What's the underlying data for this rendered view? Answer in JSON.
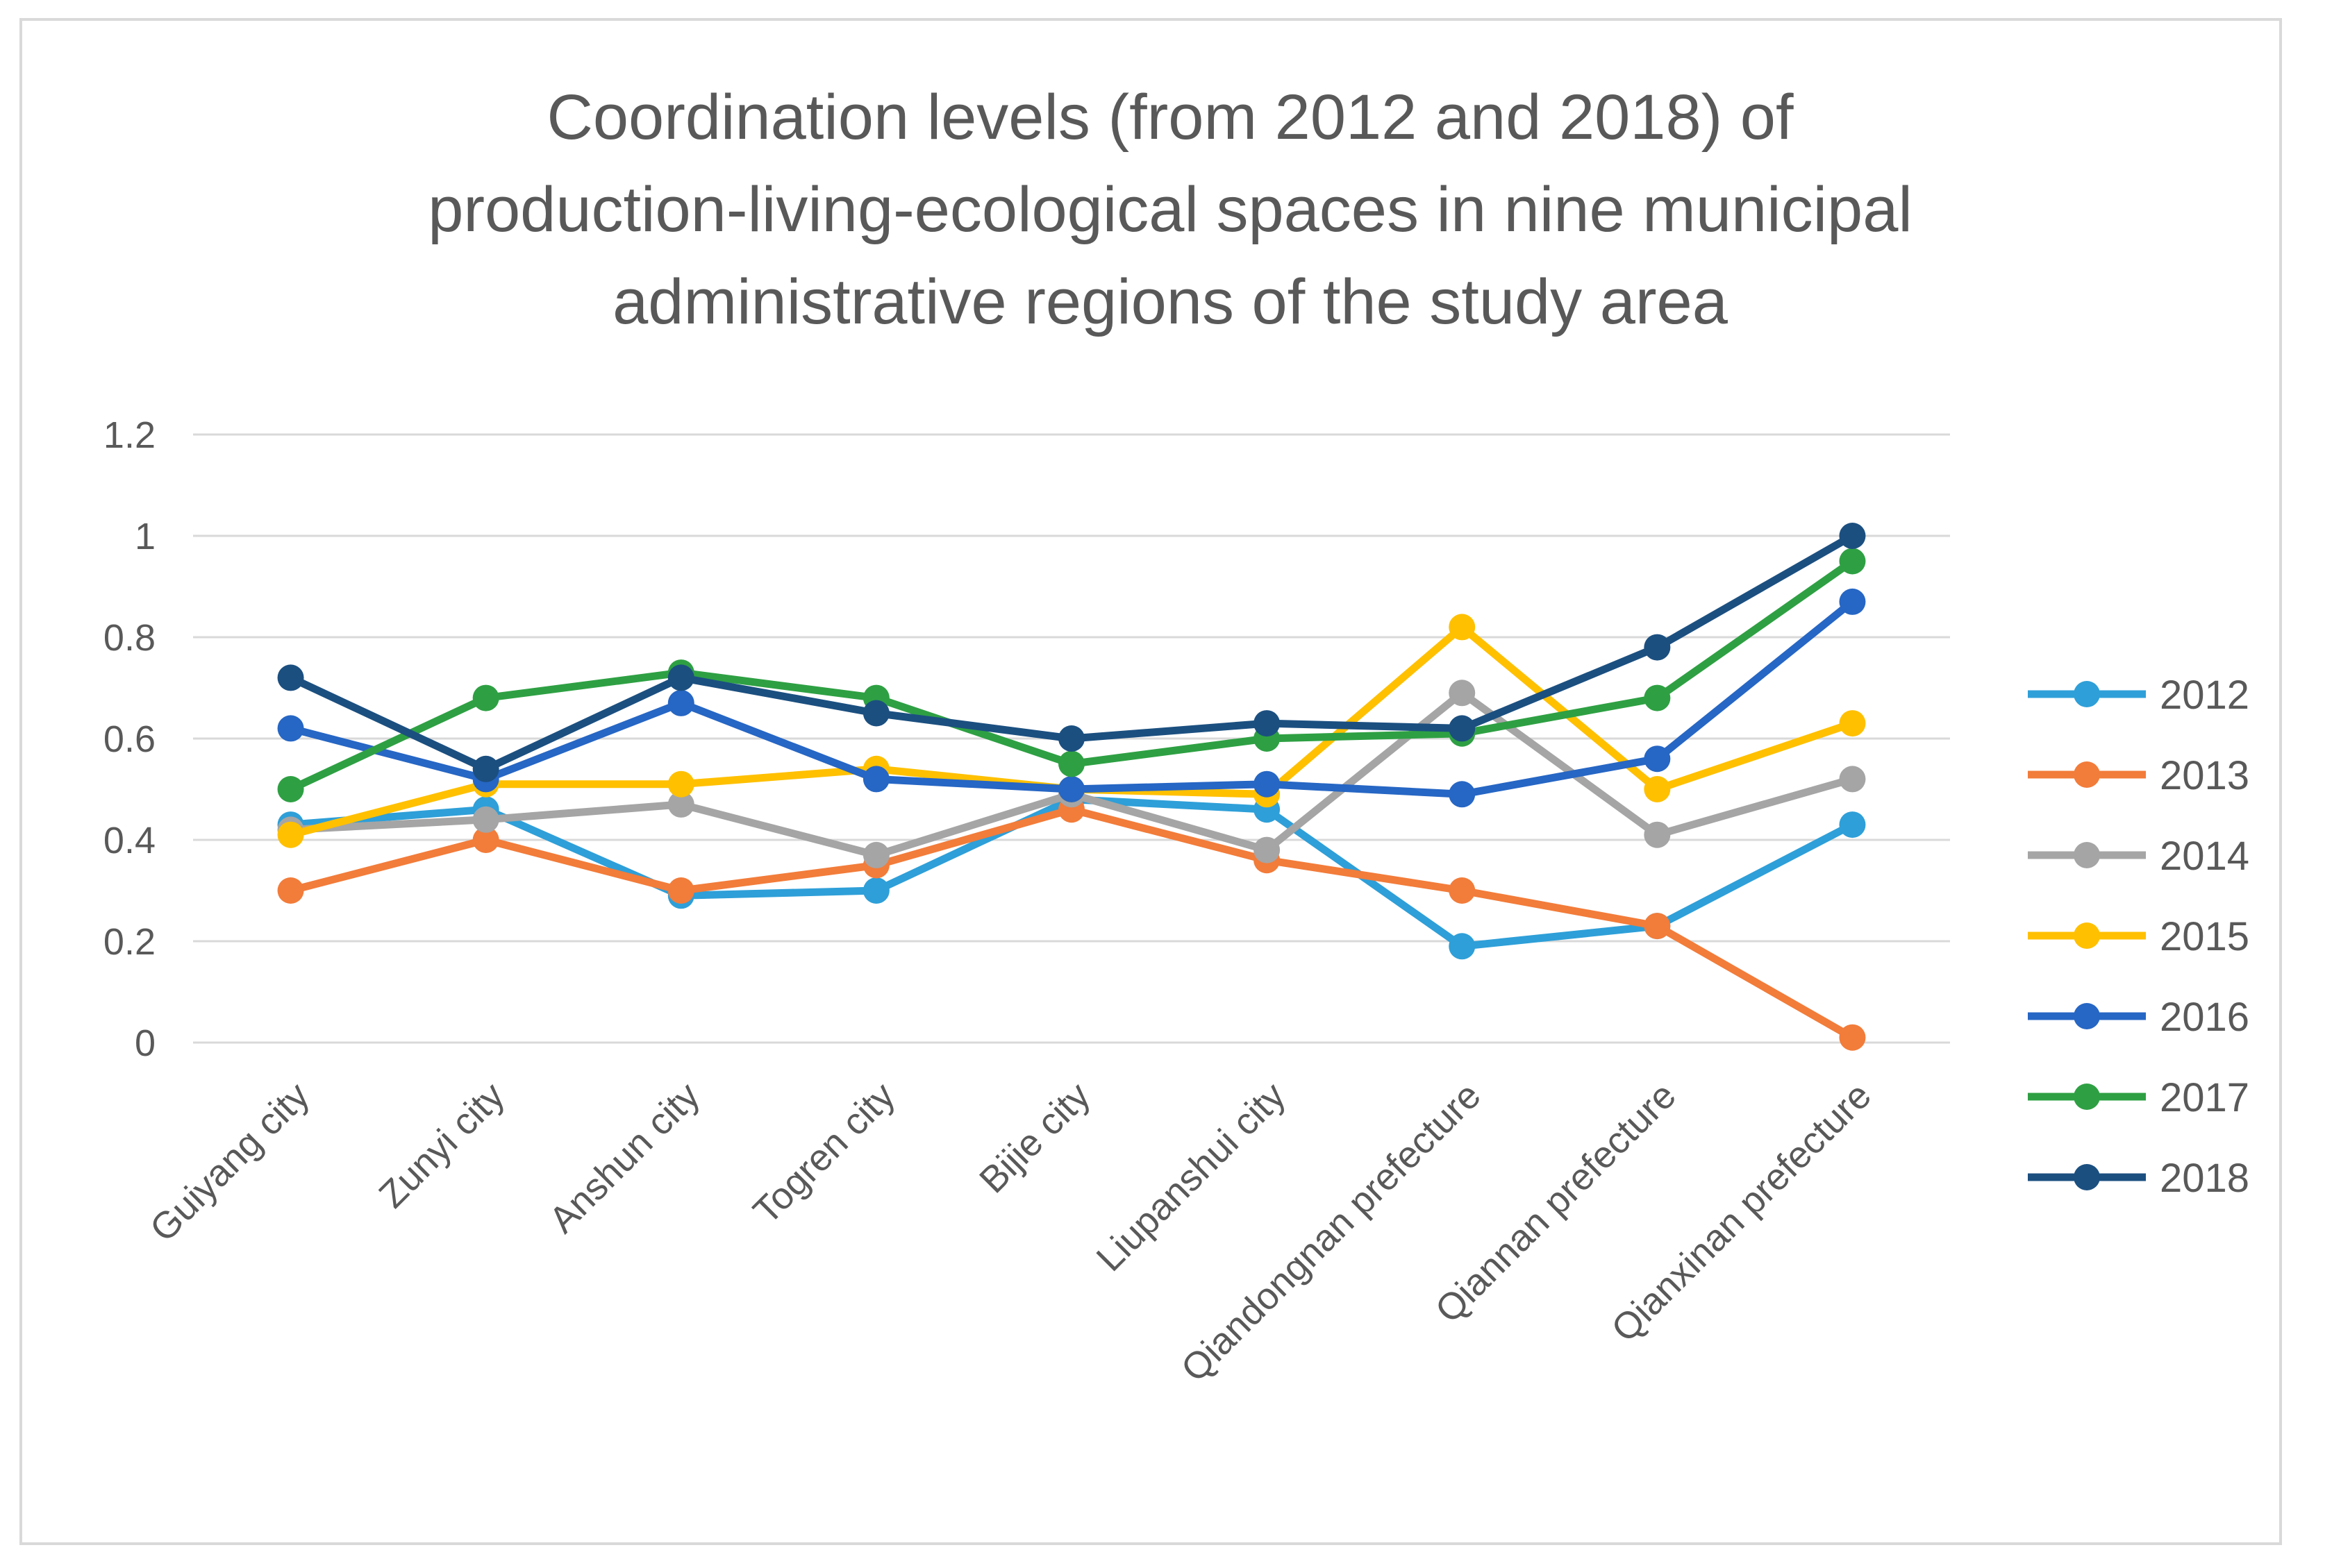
{
  "chart_data": {
    "type": "line",
    "title_lines": [
      "Coordination levels (from 2012 and 2018) of",
      "production-living-ecological spaces in nine municipal",
      "administrative regions of the study area"
    ],
    "xlabel": "",
    "ylabel": "",
    "ylim": [
      0,
      1.2
    ],
    "yticks": [
      "0",
      "0.2",
      "0.4",
      "0.6",
      "0.8",
      "1",
      "1.2"
    ],
    "grid": true,
    "legend_position": "right",
    "categories": [
      "Guiyang city",
      "Zunyi city",
      "Anshun city",
      "Togren city",
      "Bijie city",
      "Liupanshui city",
      "Qiandongnan prefecture",
      "Qiannan prefecture",
      "Qianxinan prefecture"
    ],
    "series": [
      {
        "name": "2012",
        "color": "#2E9FD8",
        "values": [
          0.43,
          0.46,
          0.29,
          0.3,
          0.48,
          0.46,
          0.19,
          0.23,
          0.43
        ]
      },
      {
        "name": "2013",
        "color": "#F27C3A",
        "values": [
          0.3,
          0.4,
          0.3,
          0.35,
          0.46,
          0.36,
          0.3,
          0.23,
          0.01
        ]
      },
      {
        "name": "2014",
        "color": "#A5A5A5",
        "values": [
          0.42,
          0.44,
          0.47,
          0.37,
          0.49,
          0.38,
          0.69,
          0.41,
          0.52
        ]
      },
      {
        "name": "2015",
        "color": "#FFC000",
        "values": [
          0.41,
          0.51,
          0.51,
          0.54,
          0.5,
          0.49,
          0.82,
          0.5,
          0.63
        ]
      },
      {
        "name": "2016",
        "color": "#2666C4",
        "values": [
          0.62,
          0.52,
          0.67,
          0.52,
          0.5,
          0.51,
          0.49,
          0.56,
          0.87
        ]
      },
      {
        "name": "2017",
        "color": "#2EA043",
        "values": [
          0.5,
          0.68,
          0.73,
          0.68,
          0.55,
          0.6,
          0.61,
          0.68,
          0.95
        ]
      },
      {
        "name": "2018",
        "color": "#1B4F80",
        "values": [
          0.72,
          0.54,
          0.72,
          0.65,
          0.6,
          0.63,
          0.62,
          0.78,
          1.0
        ]
      }
    ]
  }
}
